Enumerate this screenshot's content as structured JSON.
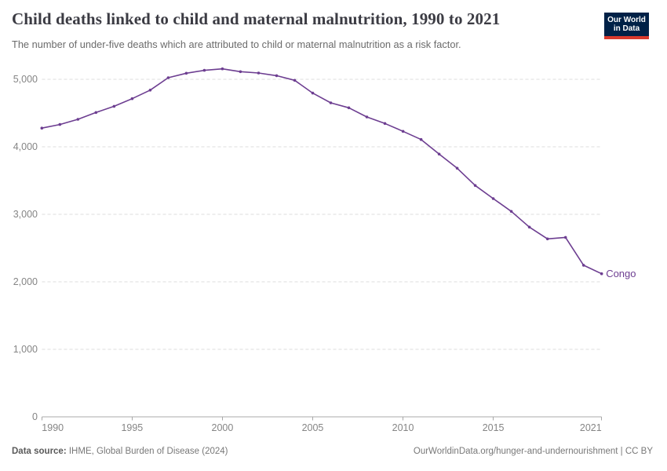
{
  "header": {
    "title": "Child deaths linked to child and maternal malnutrition, 1990 to 2021",
    "subtitle": "The number of under-five deaths which are attributed to child or maternal malnutrition as a risk factor.",
    "logo": {
      "line1": "Our World",
      "line2": "in Data"
    }
  },
  "chart_data": {
    "type": "line",
    "title": "Child deaths linked to child and maternal malnutrition, 1990 to 2021",
    "x": [
      1990,
      1991,
      1992,
      1993,
      1994,
      1995,
      1996,
      1997,
      1998,
      1999,
      2000,
      2001,
      2002,
      2003,
      2004,
      2005,
      2006,
      2007,
      2008,
      2009,
      2010,
      2011,
      2012,
      2013,
      2014,
      2015,
      2016,
      2017,
      2018,
      2019,
      2020,
      2021
    ],
    "series": [
      {
        "name": "Congo",
        "color": "#6d3e91",
        "values": [
          4277,
          4330,
          4407,
          4508,
          4600,
          4713,
          4840,
          5023,
          5089,
          5132,
          5155,
          5113,
          5093,
          5053,
          4985,
          4795,
          4651,
          4578,
          4442,
          4345,
          4229,
          4108,
          3892,
          3682,
          3427,
          3233,
          3043,
          2810,
          2636,
          2658,
          2245,
          2120
        ]
      }
    ],
    "ylim": [
      0,
      5300
    ],
    "yticks": [
      0,
      1000,
      2000,
      3000,
      4000,
      5000
    ],
    "xticks": [
      1990,
      1995,
      2000,
      2005,
      2010,
      2015,
      2021
    ],
    "grid": "horizontal-dashed",
    "legend_position": "end-of-line-label",
    "end_label": "Congo"
  },
  "footer": {
    "source_label": "Data source:",
    "source_text": " IHME, Global Burden of Disease (2024)",
    "link_text": "OurWorldinData.org/hunger-and-undernourishment | CC BY"
  },
  "colors": {
    "series_purple": "#6d3e91",
    "gridline": "#dcdcdc",
    "axis": "#a8a8a8",
    "axis_label": "#858585",
    "title": "#3b3b43",
    "subtitle": "#6b6b6b",
    "logo_navy": "#002147",
    "logo_red": "#d93a2d",
    "footer_text": "#787878"
  }
}
